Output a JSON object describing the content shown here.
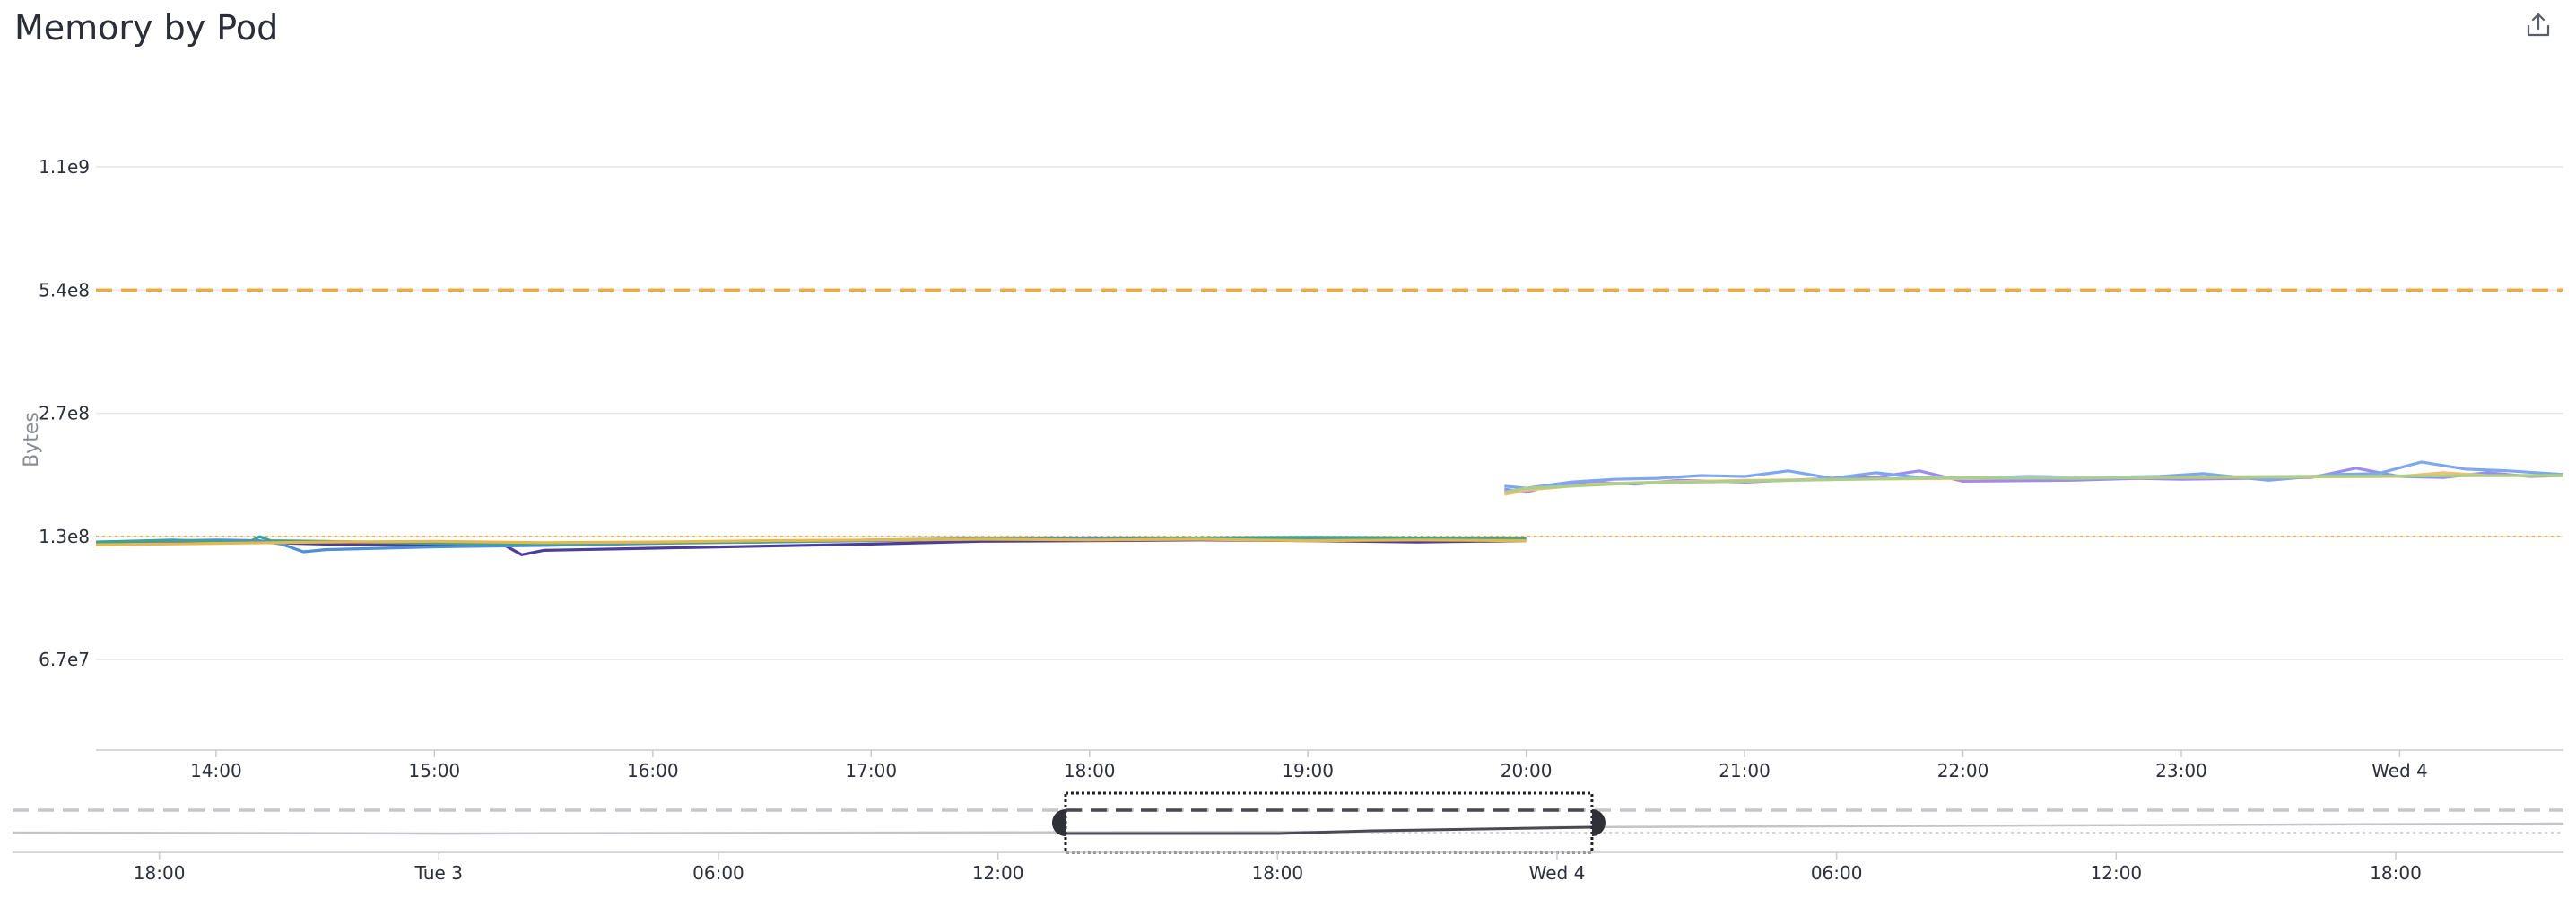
{
  "header": {
    "title": "Memory by Pod",
    "export_icon": "share-export-icon"
  },
  "chart_data": {
    "type": "line",
    "title": "Memory by Pod",
    "ylabel": "Bytes",
    "xlabel": "",
    "y_scale": "log",
    "y_ticks": [
      "1.1e9",
      "5.4e8",
      "2.7e8",
      "1.3e8",
      "6.7e7"
    ],
    "y_tick_values": [
      1073741824,
      536870912,
      268435456,
      134217728,
      67108864
    ],
    "x_ticks": [
      "14:00",
      "15:00",
      "16:00",
      "17:00",
      "18:00",
      "19:00",
      "20:00",
      "21:00",
      "22:00",
      "23:00",
      "Wed 4"
    ],
    "x_tick_hours": [
      14,
      15,
      16,
      17,
      18,
      19,
      20,
      21,
      22,
      23,
      24
    ],
    "x_range_hours": [
      13.45,
      24.75
    ],
    "grid": true,
    "reference_lines": [
      {
        "value": 536870912,
        "style": "dashed",
        "color": "#f0a93b"
      },
      {
        "value": 134217728,
        "style": "dotted",
        "color": "#f0a93b"
      }
    ],
    "series": [
      {
        "color": "#4a3e9a",
        "segment": "before",
        "x": [
          13.45,
          14.0,
          14.5,
          15.0,
          15.3,
          15.4,
          15.5,
          16.0,
          16.5,
          17.0,
          17.5,
          18.0,
          18.5,
          19.0,
          19.5,
          20.0
        ],
        "y": [
          129000000,
          130500000,
          128500000,
          128000000,
          129500000,
          121000000,
          124000000,
          125500000,
          127000000,
          128500000,
          130500000,
          131000000,
          131500000,
          131000000,
          130000000,
          131000000
        ]
      },
      {
        "color": "#4f8ed9",
        "segment": "before",
        "x": [
          13.45,
          14.0,
          14.2,
          14.3,
          14.4,
          14.5,
          15.0,
          15.5,
          16.0,
          16.5,
          17.0,
          17.5,
          18.0,
          18.5,
          19.0,
          19.5,
          20.0
        ],
        "y": [
          130000000,
          131500000,
          131000000,
          128500000,
          123000000,
          124500000,
          126500000,
          127500000,
          129000000,
          130000000,
          131000000,
          132000000,
          133000000,
          132000000,
          132500000,
          133000000,
          132000000
        ]
      },
      {
        "color": "#3aa39a",
        "segment": "before",
        "x": [
          13.45,
          13.8,
          14.0,
          14.15,
          14.2,
          14.25,
          14.5,
          15.0,
          15.5,
          16.0,
          16.5,
          17.0,
          17.5,
          18.0,
          18.5,
          19.0,
          19.5,
          20.0
        ],
        "y": [
          130000000,
          131500000,
          130500000,
          130000000,
          134000000,
          131000000,
          130500000,
          129000000,
          128500000,
          129500000,
          130000000,
          131500000,
          132500000,
          132000000,
          133000000,
          133500000,
          133000000,
          132500000
        ]
      },
      {
        "color": "#e6b84a",
        "segment": "before",
        "x": [
          13.45,
          14.0,
          14.5,
          15.0,
          15.5,
          16.0,
          16.5,
          17.0,
          17.5,
          18.0,
          18.5,
          19.0,
          19.5,
          20.0
        ],
        "y": [
          128000000,
          129000000,
          130000000,
          130500000,
          129500000,
          130000000,
          131000000,
          131500000,
          132000000,
          131500000,
          132000000,
          131000000,
          131500000,
          131000000
        ]
      },
      {
        "color": "#9a8cf0",
        "segment": "after",
        "x": [
          19.9,
          20.0,
          20.1,
          20.3,
          20.5,
          20.7,
          21.0,
          21.3,
          21.6,
          21.8,
          22.0,
          22.5,
          22.8,
          23.0,
          23.3,
          23.6,
          23.8,
          24.0,
          24.2,
          24.4,
          24.6,
          24.75
        ],
        "y": [
          175000000,
          172000000,
          178000000,
          182000000,
          180000000,
          184000000,
          182000000,
          185000000,
          187000000,
          194000000,
          183000000,
          184000000,
          186000000,
          185000000,
          186000000,
          187000000,
          197000000,
          188000000,
          187000000,
          192000000,
          188000000,
          189000000
        ]
      },
      {
        "color": "#7fa7f0",
        "segment": "after",
        "x": [
          19.9,
          20.0,
          20.2,
          20.4,
          20.6,
          20.8,
          21.0,
          21.2,
          21.4,
          21.6,
          21.8,
          22.0,
          22.3,
          22.6,
          22.9,
          23.1,
          23.4,
          23.7,
          23.9,
          24.1,
          24.3,
          24.5,
          24.75
        ],
        "y": [
          178000000,
          176000000,
          182000000,
          185000000,
          186000000,
          189000000,
          188000000,
          194000000,
          186000000,
          192000000,
          187000000,
          186000000,
          188000000,
          187000000,
          188000000,
          191000000,
          184000000,
          190000000,
          191000000,
          204000000,
          196000000,
          194000000,
          190000000
        ]
      },
      {
        "color": "#f0c070",
        "segment": "after",
        "x": [
          19.9,
          20.0,
          20.3,
          20.6,
          21.0,
          21.5,
          22.0,
          22.5,
          23.0,
          23.5,
          24.0,
          24.2,
          24.4,
          24.75
        ],
        "y": [
          170000000,
          174000000,
          180000000,
          182000000,
          184000000,
          185000000,
          186000000,
          186500000,
          187000000,
          187500000,
          188000000,
          192000000,
          189000000,
          189000000
        ]
      },
      {
        "color": "#a9cf8a",
        "segment": "after",
        "x": [
          19.9,
          20.0,
          20.5,
          21.0,
          21.5,
          22.0,
          22.5,
          23.0,
          23.5,
          24.0,
          24.5,
          24.75
        ],
        "y": [
          172000000,
          176000000,
          181000000,
          183000000,
          185000000,
          187000000,
          186000000,
          187500000,
          188000000,
          188500000,
          189000000,
          189000000
        ]
      }
    ]
  },
  "navigator": {
    "ticks": [
      "18:00",
      "Tue 3",
      "06:00",
      "12:00",
      "18:00",
      "Wed 4",
      "06:00",
      "12:00",
      "18:00"
    ],
    "tick_hours": [
      18,
      24,
      30,
      36,
      42,
      48,
      54,
      60,
      66
    ],
    "range_hours": [
      14.85,
      69.6
    ],
    "selection_hours": [
      37.45,
      48.75
    ]
  }
}
